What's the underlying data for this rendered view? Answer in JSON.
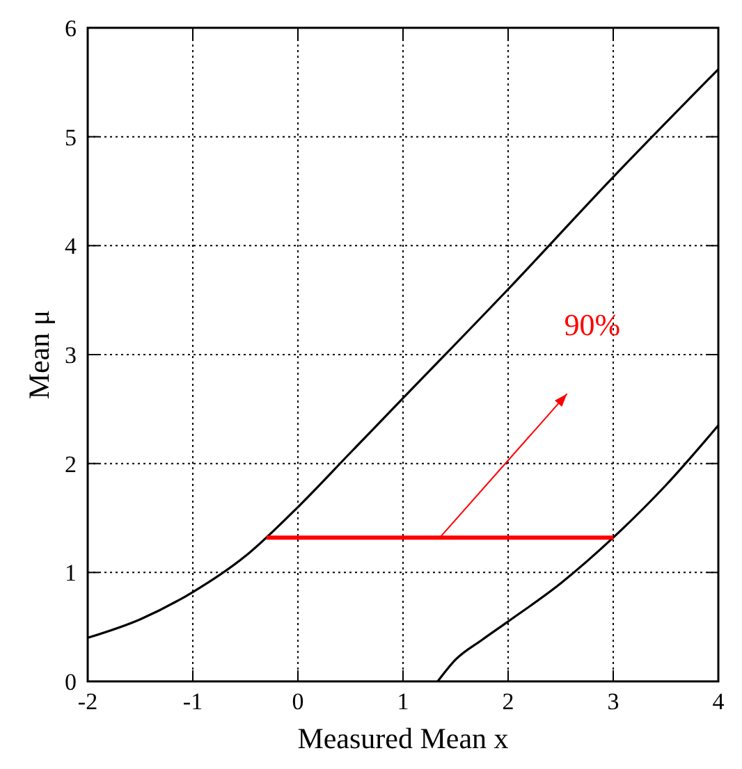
{
  "chart_data": {
    "type": "line",
    "xlabel": "Measured Mean x",
    "ylabel": "Mean μ",
    "xlim": [
      -2,
      4
    ],
    "ylim": [
      0,
      6
    ],
    "xticks": [
      -2,
      -1,
      0,
      1,
      2,
      3,
      4
    ],
    "yticks": [
      0,
      1,
      2,
      3,
      4,
      5,
      6
    ],
    "grid": true,
    "series": [
      {
        "color": "#000000",
        "x": [
          -2,
          -1.5,
          -1,
          -0.5,
          0,
          0.5,
          1,
          2,
          3,
          4
        ],
        "values": [
          0.4,
          0.57,
          0.82,
          1.15,
          1.6,
          2.1,
          2.6,
          3.6,
          4.63,
          5.62
        ]
      },
      {
        "color": "#000000",
        "x": [
          1.33,
          1.5,
          1.75,
          2,
          2.5,
          3,
          3.5,
          4
        ],
        "values": [
          0,
          0.2,
          0.38,
          0.55,
          0.9,
          1.32,
          1.8,
          2.35
        ]
      },
      {
        "color": "#ff0000",
        "x": [
          -0.3,
          3
        ],
        "values": [
          1.32,
          1.32
        ]
      }
    ],
    "annotations": [
      "90%"
    ]
  }
}
